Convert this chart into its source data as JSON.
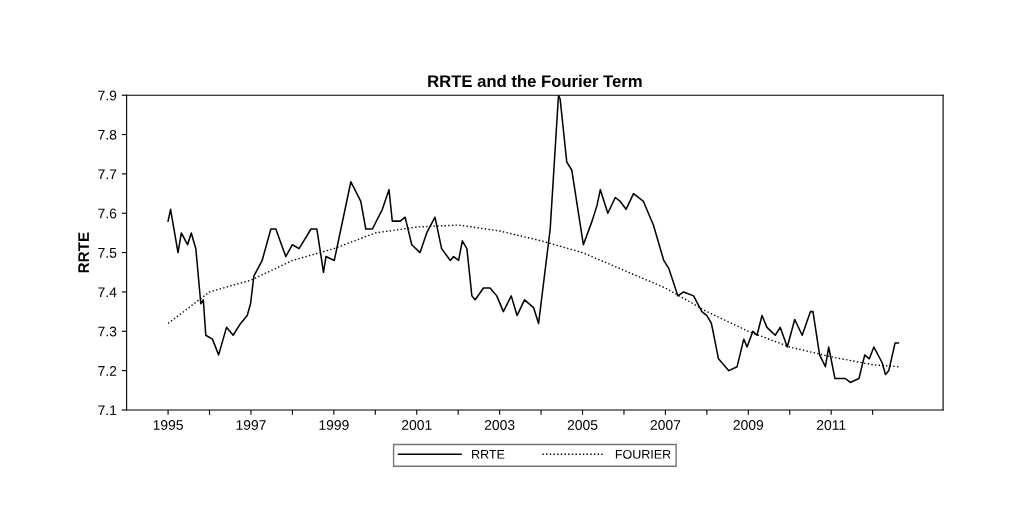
{
  "chart_data": {
    "type": "line",
    "title": "RRTE and the Fourier Term",
    "ylabel": "RRTE",
    "xlim": [
      1994.0,
      2013.7
    ],
    "xticks": [
      1995,
      {
        "value": 1996,
        "label": null
      },
      1997,
      {
        "value": 1998,
        "label": null
      },
      1999,
      {
        "value": 2000,
        "label": null
      },
      2001,
      {
        "value": 2002,
        "label": null
      },
      2003,
      {
        "value": 2004,
        "label": null
      },
      2005,
      {
        "value": 2006,
        "label": null
      },
      2007,
      {
        "value": 2008,
        "label": null
      },
      2009,
      {
        "value": 2010,
        "label": null
      },
      2011,
      {
        "value": 2012,
        "label": null
      }
    ],
    "ylim": [
      7.1,
      7.9
    ],
    "yticks": [
      7.1,
      7.2,
      7.3,
      7.4,
      7.5,
      7.6,
      7.7,
      7.8,
      7.9
    ],
    "grid": false,
    "legend": "bottom",
    "series": [
      {
        "name": "RRTE",
        "color": "#000000",
        "line_style": "solid",
        "x": [
          1995.0,
          1995.06,
          1995.24,
          1995.32,
          1995.47,
          1995.56,
          1995.67,
          1995.79,
          1995.85,
          1995.91,
          1996.07,
          1996.22,
          1996.41,
          1996.57,
          1996.75,
          1996.91,
          1996.99,
          1997.07,
          1997.27,
          1997.48,
          1997.6,
          1997.84,
          1998.0,
          1998.16,
          1998.45,
          1998.59,
          1998.75,
          1998.81,
          1999.01,
          1999.41,
          1999.65,
          1999.77,
          1999.93,
          2000.17,
          2000.33,
          2000.41,
          2000.6,
          2000.72,
          2000.88,
          2001.08,
          2001.24,
          2001.44,
          2001.6,
          2001.81,
          2001.89,
          2002.01,
          2002.1,
          2002.21,
          2002.33,
          2002.41,
          2002.61,
          2002.77,
          2002.93,
          2003.09,
          2003.28,
          2003.42,
          2003.6,
          2003.82,
          2003.94,
          2004.22,
          2004.42,
          2004.46,
          2004.62,
          2004.74,
          2005.02,
          2005.23,
          2005.35,
          2005.43,
          2005.61,
          2005.79,
          2005.91,
          2006.05,
          2006.23,
          2006.47,
          2006.71,
          2006.96,
          2007.08,
          2007.3,
          2007.44,
          2007.68,
          2007.88,
          2008.0,
          2008.11,
          2008.28,
          2008.53,
          2008.73,
          2008.89,
          2008.97,
          2009.11,
          2009.21,
          2009.33,
          2009.45,
          2009.65,
          2009.77,
          2009.94,
          2010.12,
          2010.3,
          2010.5,
          2010.56,
          2010.72,
          2010.86,
          2010.94,
          2011.09,
          2011.34,
          2011.46,
          2011.67,
          2011.81,
          2011.92,
          2012.03,
          2012.23,
          2012.31,
          2012.39,
          2012.54,
          2012.62
        ],
        "values": [
          7.58,
          7.61,
          7.5,
          7.55,
          7.52,
          7.55,
          7.51,
          7.37,
          7.38,
          7.29,
          7.28,
          7.24,
          7.31,
          7.29,
          7.32,
          7.34,
          7.37,
          7.44,
          7.48,
          7.56,
          7.56,
          7.49,
          7.52,
          7.51,
          7.56,
          7.56,
          7.45,
          7.49,
          7.48,
          7.68,
          7.63,
          7.56,
          7.56,
          7.61,
          7.66,
          7.58,
          7.58,
          7.59,
          7.52,
          7.5,
          7.55,
          7.59,
          7.51,
          7.48,
          7.49,
          7.48,
          7.53,
          7.51,
          7.39,
          7.38,
          7.41,
          7.41,
          7.39,
          7.35,
          7.39,
          7.34,
          7.38,
          7.36,
          7.32,
          7.56,
          7.9,
          7.89,
          7.73,
          7.71,
          7.52,
          7.58,
          7.62,
          7.66,
          7.6,
          7.64,
          7.63,
          7.61,
          7.65,
          7.63,
          7.57,
          7.48,
          7.46,
          7.39,
          7.4,
          7.39,
          7.35,
          7.34,
          7.32,
          7.23,
          7.2,
          7.21,
          7.28,
          7.26,
          7.3,
          7.29,
          7.34,
          7.31,
          7.29,
          7.31,
          7.26,
          7.33,
          7.29,
          7.35,
          7.35,
          7.24,
          7.21,
          7.26,
          7.18,
          7.18,
          7.17,
          7.18,
          7.24,
          7.23,
          7.26,
          7.22,
          7.19,
          7.2,
          7.27,
          7.27
        ]
      },
      {
        "name": "FOURIER",
        "color": "#000000",
        "line_style": "dotted",
        "x": [
          1995.0,
          1996.0,
          1997.0,
          1998.0,
          1999.0,
          2000.0,
          2001.0,
          2002.0,
          2003.0,
          2004.0,
          2005.0,
          2006.0,
          2007.0,
          2008.0,
          2009.0,
          2010.0,
          2011.0,
          2012.0,
          2012.62
        ],
        "values": [
          7.32,
          7.4,
          7.43,
          7.48,
          7.51,
          7.55,
          7.565,
          7.57,
          7.555,
          7.53,
          7.5,
          7.455,
          7.41,
          7.35,
          7.3,
          7.26,
          7.235,
          7.215,
          7.21
        ]
      }
    ]
  }
}
